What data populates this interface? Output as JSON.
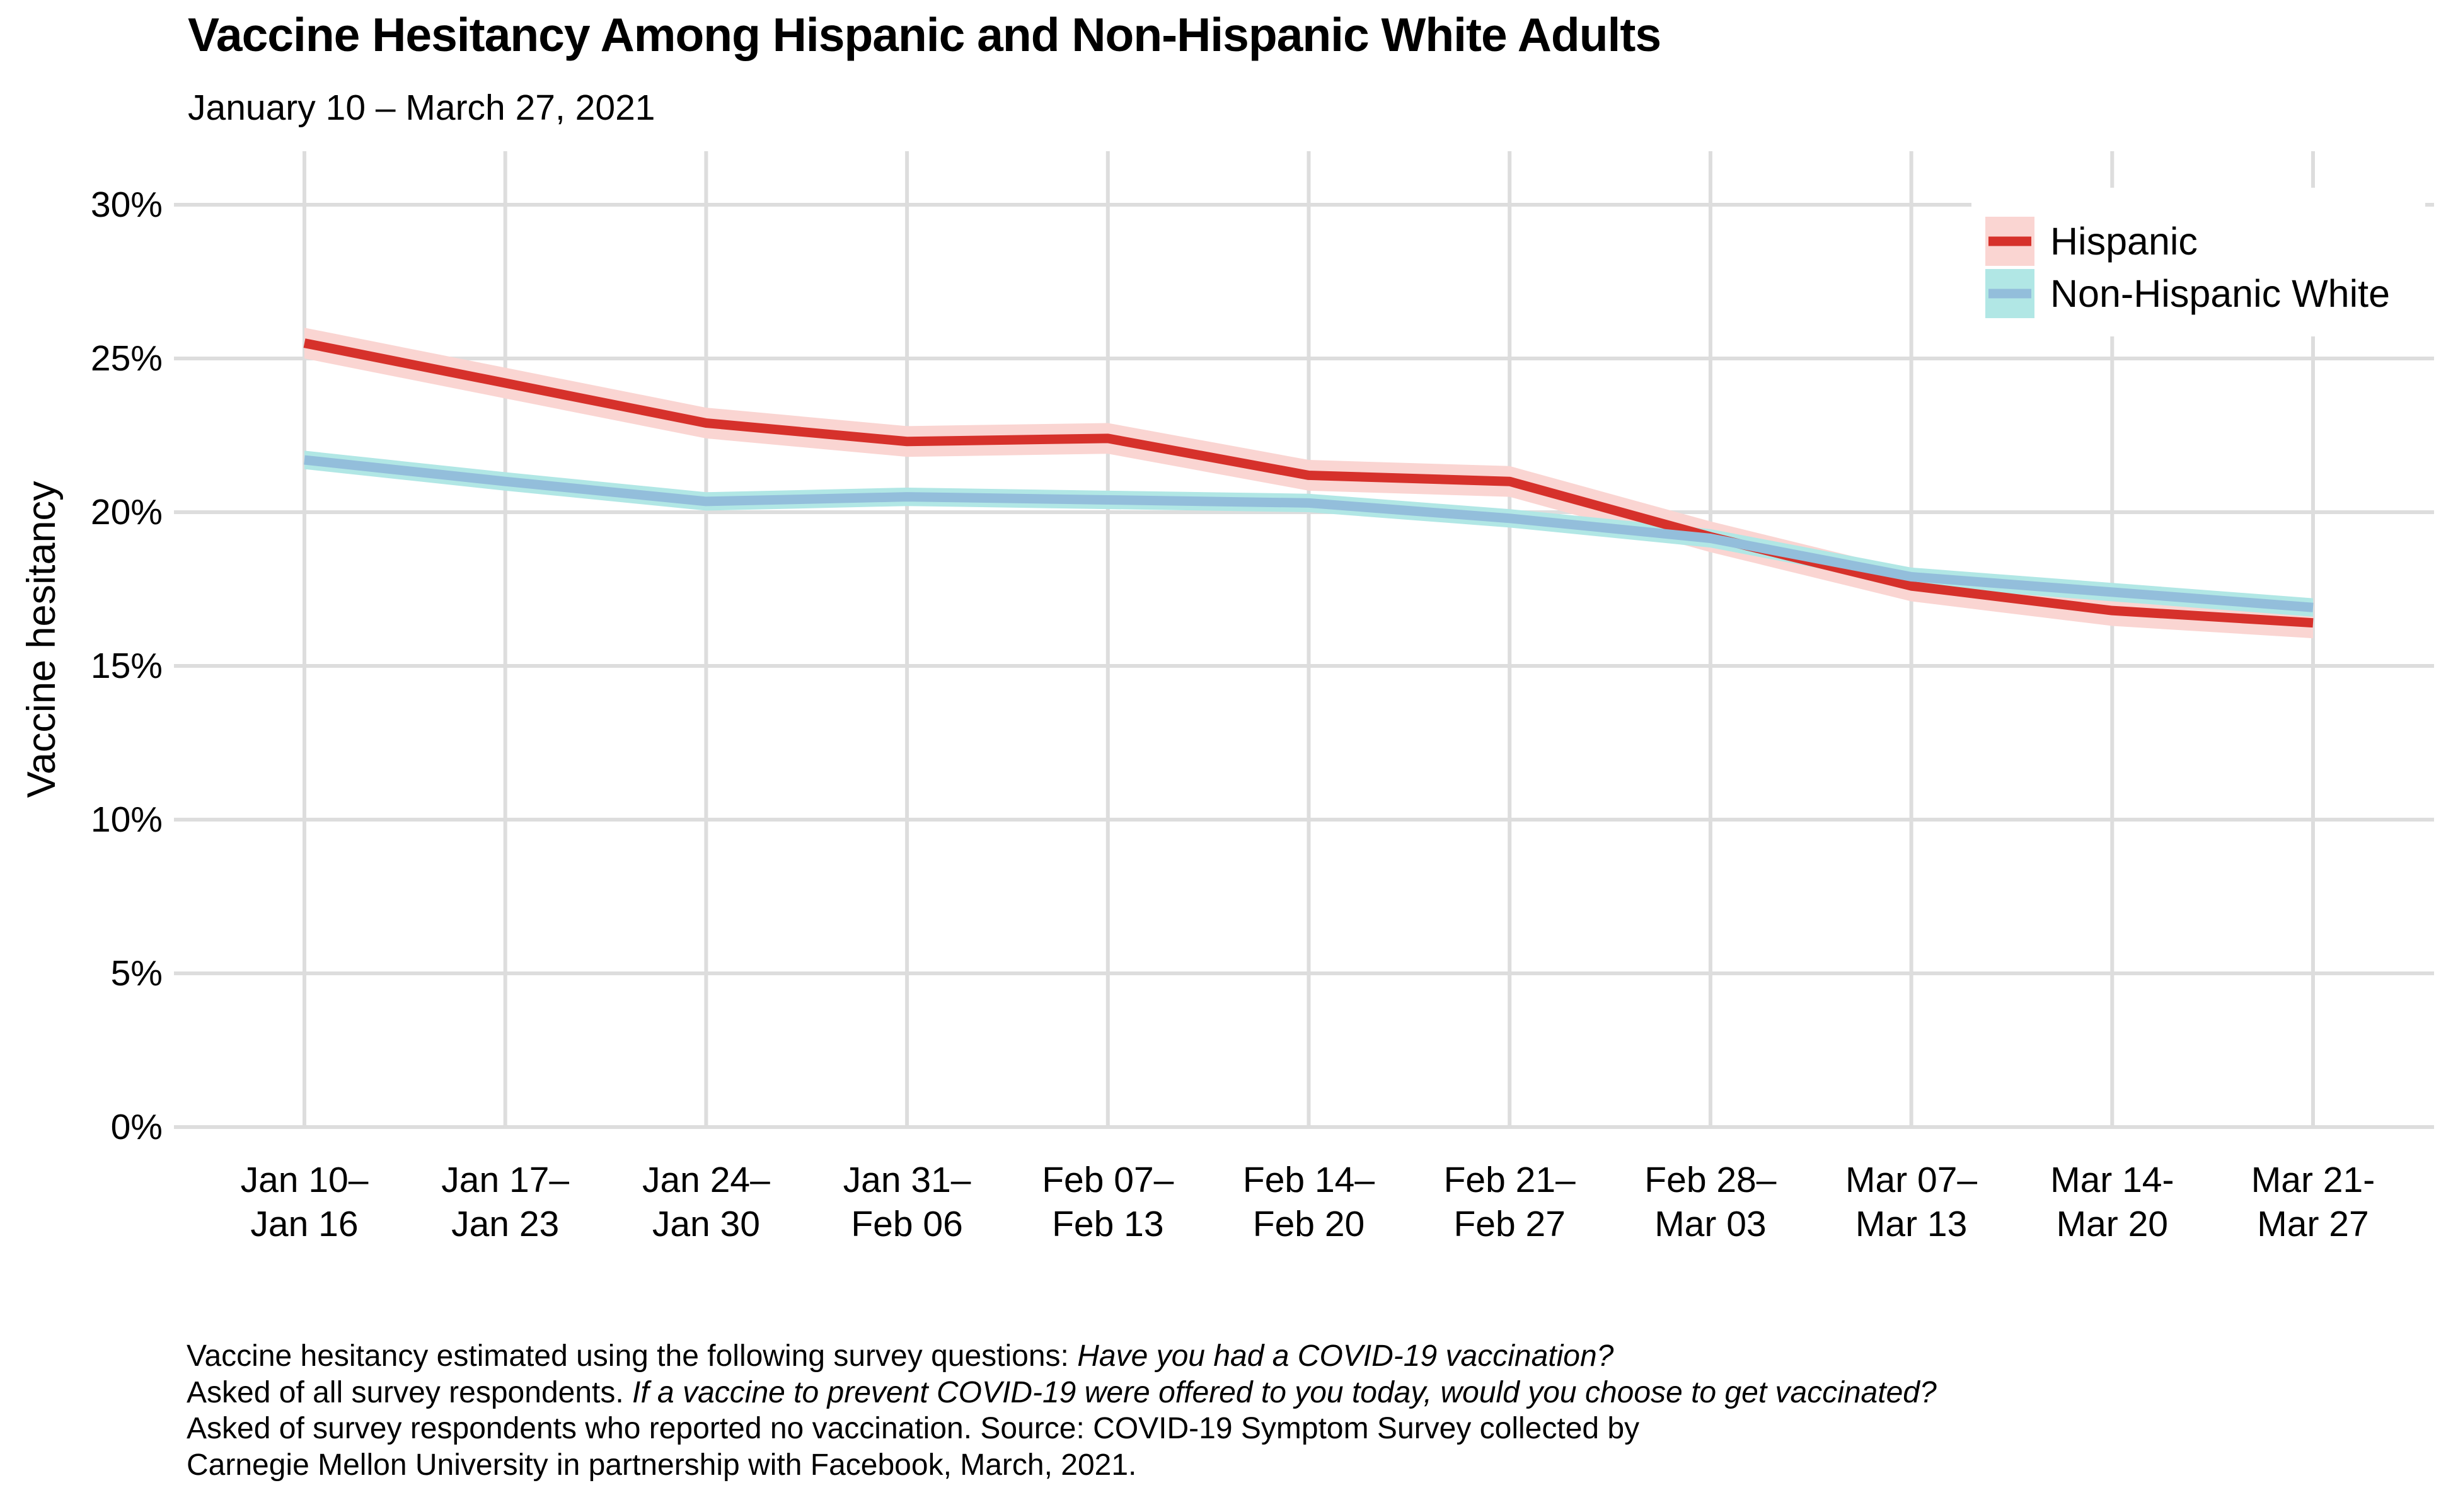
{
  "header": {
    "title": "Vaccine Hesitancy Among Hispanic and Non-Hispanic White Adults",
    "subtitle": "January 10 – March 27, 2021"
  },
  "chart_data": {
    "type": "line",
    "title": "Vaccine Hesitancy Among Hispanic and Non-Hispanic White Adults",
    "subtitle": "January 10 – March 27, 2021",
    "xlabel": "",
    "ylabel": "Vaccine hesitancy",
    "ylim": [
      0,
      30
    ],
    "y_unit": "percent",
    "grid": true,
    "gridline_color": "#DDDDDD",
    "background": "#FFFFFF",
    "legend_position": "top-right",
    "y_ticks": [
      {
        "value": 0,
        "label": "0%"
      },
      {
        "value": 5,
        "label": "5%"
      },
      {
        "value": 10,
        "label": "10%"
      },
      {
        "value": 15,
        "label": "15%"
      },
      {
        "value": 20,
        "label": "20%"
      },
      {
        "value": 25,
        "label": "25%"
      },
      {
        "value": 30,
        "label": "30%"
      }
    ],
    "categories": [
      "Jan 10–Jan 16",
      "Jan 17–Jan 23",
      "Jan 24–Jan 30",
      "Jan 31–Feb 06",
      "Feb 07–Feb 13",
      "Feb 14–Feb 20",
      "Feb 21–Feb 27",
      "Feb 28–Mar 03",
      "Mar 07–Mar 13",
      "Mar 14-Mar 20",
      "Mar 21-Mar 27"
    ],
    "x_tick_label_lines": [
      [
        "Jan 10–",
        "Jan 16"
      ],
      [
        "Jan 17–",
        "Jan 23"
      ],
      [
        "Jan 24–",
        "Jan 30"
      ],
      [
        "Jan 31–",
        "Feb 06"
      ],
      [
        "Feb 07–",
        "Feb 13"
      ],
      [
        "Feb 14–",
        "Feb 20"
      ],
      [
        "Feb 21–",
        "Feb 27"
      ],
      [
        "Feb 28–",
        "Mar 03"
      ],
      [
        "Mar 07–",
        "Mar 13"
      ],
      [
        "Mar 14-",
        "Mar 20"
      ],
      [
        "Mar 21-",
        "Mar 27"
      ]
    ],
    "series": [
      {
        "name": "Hispanic",
        "line_color": "#D6312B",
        "band_color": "#FAD5D2",
        "band_halfwidth": 0.5,
        "values": [
          25.5,
          24.2,
          22.9,
          22.3,
          22.4,
          21.2,
          21.0,
          19.2,
          17.6,
          16.8,
          16.4
        ]
      },
      {
        "name": "Non-Hispanic White",
        "line_color": "#93BEDB",
        "band_color": "#B1E7E5",
        "band_halfwidth": 0.3,
        "values": [
          21.7,
          21.0,
          20.35,
          20.5,
          20.4,
          20.3,
          19.8,
          19.15,
          17.9,
          17.4,
          16.9
        ]
      }
    ]
  },
  "caption": {
    "lines": [
      {
        "segments": [
          {
            "text": "Vaccine hesitancy estimated using the following survey questions: ",
            "italic": false
          },
          {
            "text": "Have you had a COVID-19 vaccination?",
            "italic": true
          }
        ]
      },
      {
        "segments": [
          {
            "text": "Asked of all survey respondents. ",
            "italic": false
          },
          {
            "text": "If a vaccine to prevent COVID-19 were offered to you today, would you choose to get vaccinated?",
            "italic": true
          }
        ]
      },
      {
        "segments": [
          {
            "text": "Asked of survey respondents who reported no vaccination. Source: COVID-19 Symptom Survey collected by",
            "italic": false
          }
        ]
      },
      {
        "segments": [
          {
            "text": "Carnegie Mellon University in partnership with Facebook, March, 2021.",
            "italic": false
          }
        ]
      }
    ]
  }
}
